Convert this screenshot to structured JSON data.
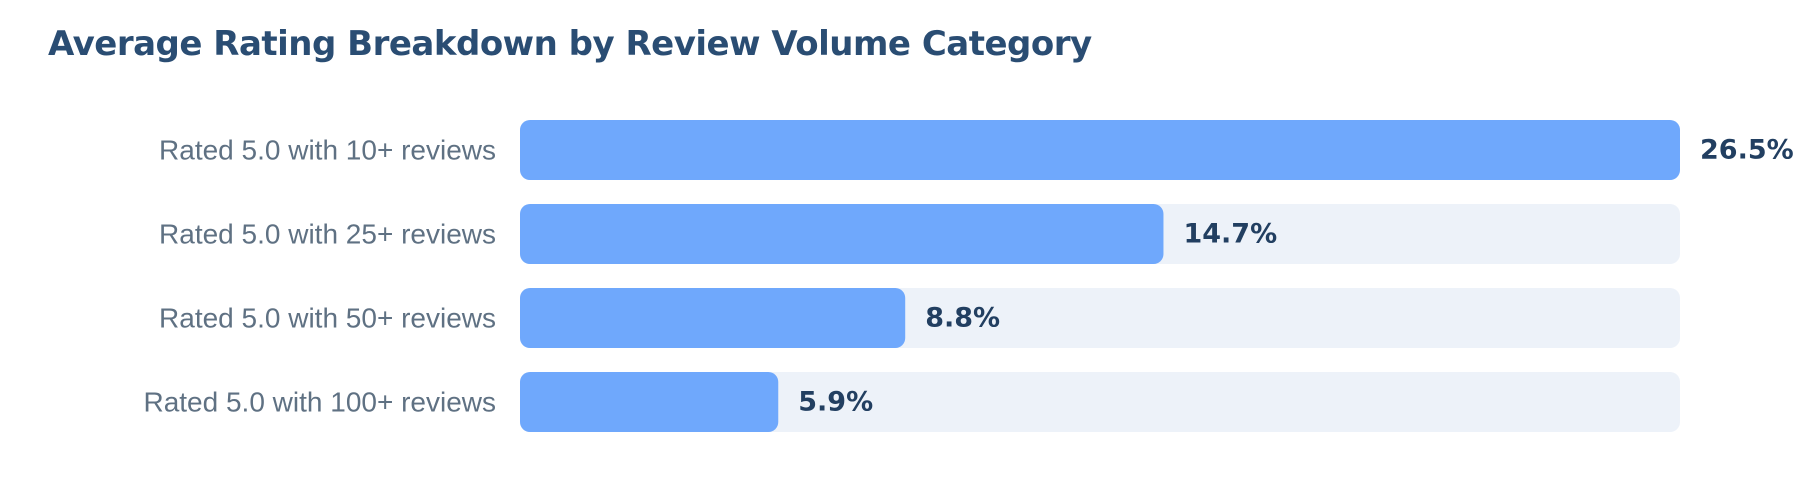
{
  "title": "Average Rating Breakdown by Review Volume Category",
  "colors": {
    "bar": "#6fa8fc",
    "track": "#edf2f9",
    "title": "#2a4d73",
    "category_text": "#5f7183",
    "value_text": "#223f61"
  },
  "chart_data": {
    "type": "bar",
    "orientation": "horizontal",
    "title": "Average Rating Breakdown by Review Volume Category",
    "categories": [
      "Rated 5.0 with 10+ reviews",
      "Rated 5.0 with 25+ reviews",
      "Rated 5.0 with 50+ reviews",
      "Rated 5.0 with 100+ reviews"
    ],
    "values": [
      26.5,
      14.7,
      8.8,
      5.9
    ],
    "value_labels": [
      "26.5%",
      "14.7%",
      "8.8%",
      "5.9%"
    ],
    "unit": "%",
    "xlim": [
      0,
      26.5
    ],
    "xlabel": "",
    "ylabel": "",
    "grid": false,
    "legend": "none"
  }
}
